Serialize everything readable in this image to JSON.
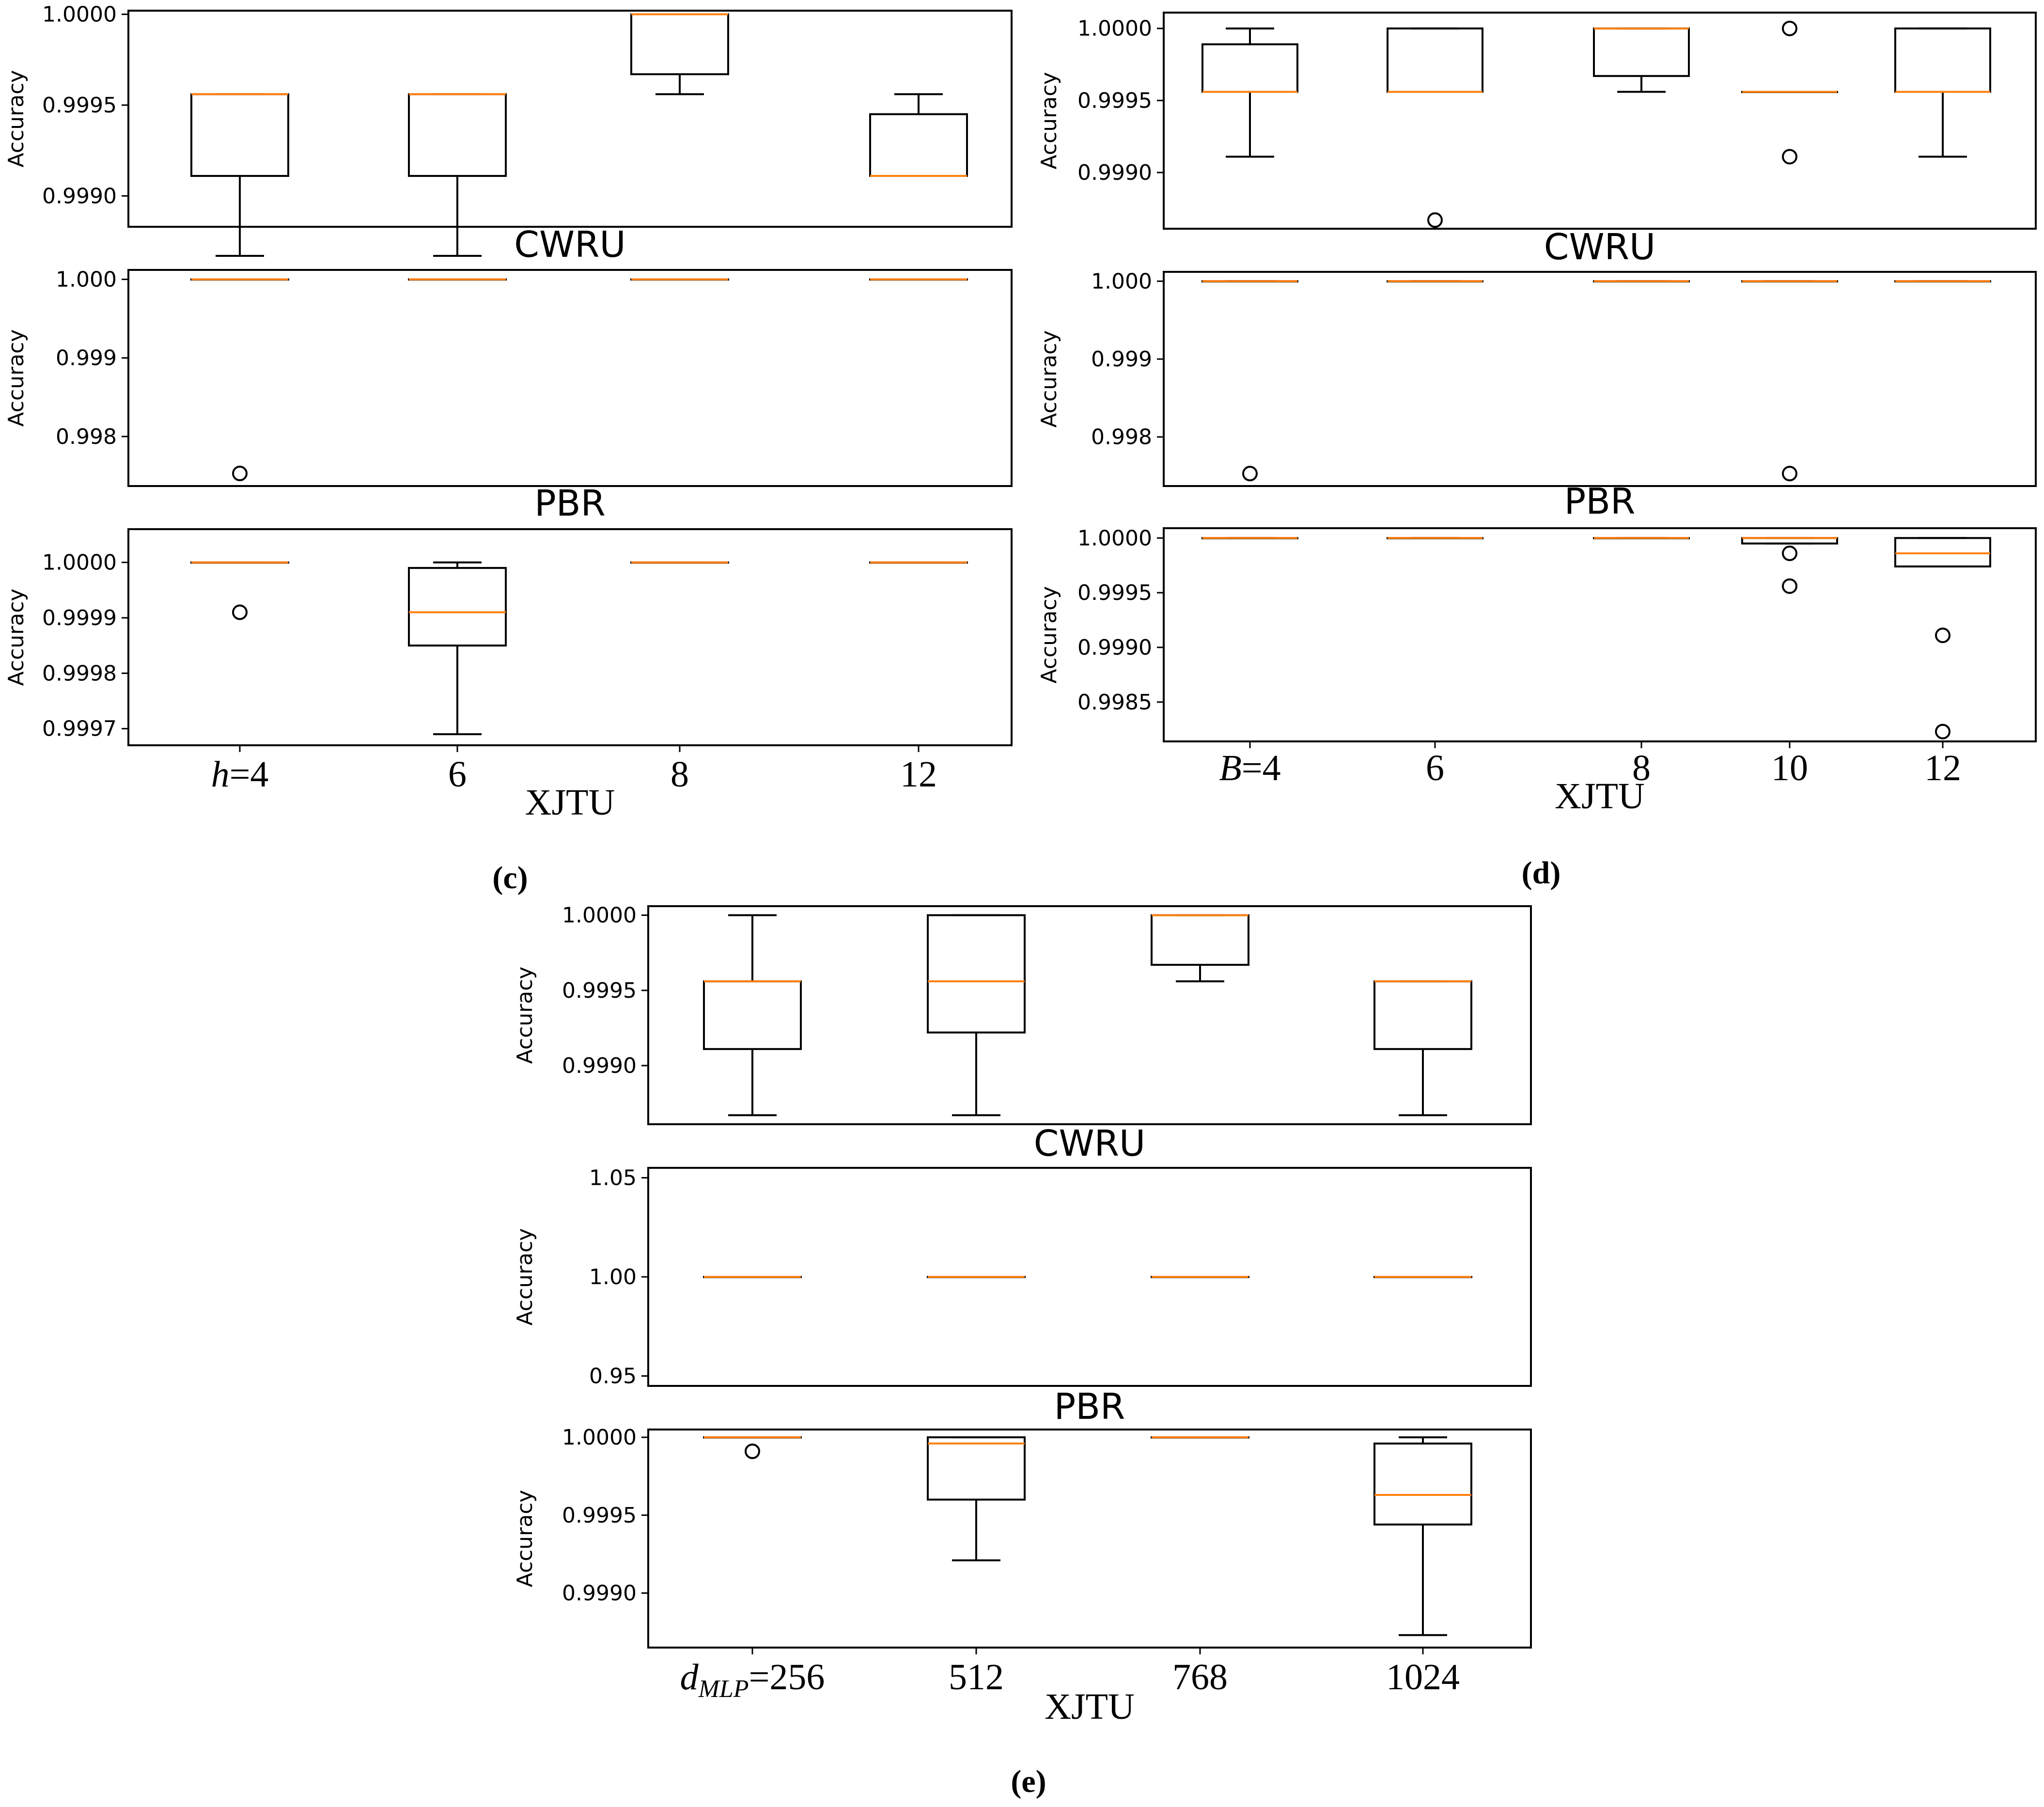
{
  "figure": {
    "panel_labels": [
      "(c)",
      "(d)",
      "(e)"
    ]
  },
  "chart_data": [
    {
      "panel": "(c)",
      "type": "box",
      "parameter": "h",
      "categories": [
        "h=4",
        "6",
        "8",
        "12"
      ],
      "category_parts": [
        [
          "h",
          "=4"
        ],
        [
          "6"
        ],
        [
          "8"
        ],
        [
          "12"
        ]
      ],
      "subplots": [
        {
          "dataset": "CWRU",
          "ylabel": "Accuracy",
          "ylim": [
            0.99883,
            1.00002
          ],
          "yticks": [
            0.999,
            0.9995,
            1.0
          ],
          "ytick_labels": [
            "0.9990",
            "0.9995",
            "1.0000"
          ],
          "boxes": [
            {
              "whislo": 0.99867,
              "q1": 0.99911,
              "med": 0.99956,
              "q3": 0.99956,
              "whishi": 0.99956,
              "fliers": []
            },
            {
              "whislo": 0.99867,
              "q1": 0.99911,
              "med": 0.99956,
              "q3": 0.99956,
              "whishi": 0.99956,
              "fliers": []
            },
            {
              "whislo": 0.99956,
              "q1": 0.99967,
              "med": 1.0,
              "q3": 1.0,
              "whishi": 1.0,
              "fliers": []
            },
            {
              "whislo": 0.99911,
              "q1": 0.99911,
              "med": 0.99911,
              "q3": 0.99945,
              "whishi": 0.99956,
              "fliers": []
            }
          ]
        },
        {
          "dataset": "PBR",
          "ylabel": "Accuracy",
          "ylim": [
            0.99737,
            1.00012
          ],
          "yticks": [
            0.998,
            0.999,
            1.0
          ],
          "ytick_labels": [
            "0.998",
            "0.999",
            "1.000"
          ],
          "boxes": [
            {
              "whislo": 1.0,
              "q1": 1.0,
              "med": 1.0,
              "q3": 1.0,
              "whishi": 1.0,
              "fliers": [
                0.99753
              ]
            },
            {
              "whislo": 1.0,
              "q1": 1.0,
              "med": 1.0,
              "q3": 1.0,
              "whishi": 1.0,
              "fliers": []
            },
            {
              "whislo": 1.0,
              "q1": 1.0,
              "med": 1.0,
              "q3": 1.0,
              "whishi": 1.0,
              "fliers": []
            },
            {
              "whislo": 1.0,
              "q1": 1.0,
              "med": 1.0,
              "q3": 1.0,
              "whishi": 1.0,
              "fliers": []
            }
          ]
        },
        {
          "dataset": "XJTU",
          "ylabel": "Accuracy",
          "ylim": [
            0.99967,
            1.00006
          ],
          "yticks": [
            0.9997,
            0.9998,
            0.9999,
            1.0
          ],
          "ytick_labels": [
            "0.9997",
            "0.9998",
            "0.9999",
            "1.0000"
          ],
          "boxes": [
            {
              "whislo": 1.0,
              "q1": 1.0,
              "med": 1.0,
              "q3": 1.0,
              "whishi": 1.0,
              "fliers": [
                0.99991
              ]
            },
            {
              "whislo": 0.99969,
              "q1": 0.99985,
              "med": 0.99991,
              "q3": 0.99999,
              "whishi": 1.0,
              "fliers": []
            },
            {
              "whislo": 1.0,
              "q1": 1.0,
              "med": 1.0,
              "q3": 1.0,
              "whishi": 1.0,
              "fliers": []
            },
            {
              "whislo": 1.0,
              "q1": 1.0,
              "med": 1.0,
              "q3": 1.0,
              "whishi": 1.0,
              "fliers": []
            }
          ]
        }
      ]
    },
    {
      "panel": "(d)",
      "type": "box",
      "parameter": "B",
      "categories": [
        "B=4",
        "6",
        "8",
        "10",
        "12"
      ],
      "category_parts": [
        [
          "B",
          "=4"
        ],
        [
          "6"
        ],
        [
          "8"
        ],
        [
          "10"
        ],
        [
          "12"
        ]
      ],
      "subplots": [
        {
          "dataset": "CWRU",
          "ylabel": "Accuracy",
          "ylim": [
            0.99861,
            1.00011
          ],
          "yticks": [
            0.999,
            0.9995,
            1.0
          ],
          "ytick_labels": [
            "0.9990",
            "0.9995",
            "1.0000"
          ],
          "boxes": [
            {
              "whislo": 0.99911,
              "q1": 0.99956,
              "med": 0.99956,
              "q3": 0.99989,
              "whishi": 1.0,
              "fliers": []
            },
            {
              "whislo": 0.99956,
              "q1": 0.99956,
              "med": 0.99956,
              "q3": 1.0,
              "whishi": 1.0,
              "fliers": [
                0.99867
              ]
            },
            {
              "whislo": 0.99956,
              "q1": 0.99967,
              "med": 1.0,
              "q3": 1.0,
              "whishi": 1.0,
              "fliers": []
            },
            {
              "whislo": 0.99956,
              "q1": 0.99956,
              "med": 0.99956,
              "q3": 0.99956,
              "whishi": 0.99956,
              "fliers": [
                1.0,
                0.99911
              ]
            },
            {
              "whislo": 0.99911,
              "q1": 0.99956,
              "med": 0.99956,
              "q3": 1.0,
              "whishi": 1.0,
              "fliers": []
            }
          ]
        },
        {
          "dataset": "PBR",
          "ylabel": "Accuracy",
          "ylim": [
            0.99737,
            1.00012
          ],
          "yticks": [
            0.998,
            0.999,
            1.0
          ],
          "ytick_labels": [
            "0.998",
            "0.999",
            "1.000"
          ],
          "boxes": [
            {
              "whislo": 1.0,
              "q1": 1.0,
              "med": 1.0,
              "q3": 1.0,
              "whishi": 1.0,
              "fliers": [
                0.99753
              ]
            },
            {
              "whislo": 1.0,
              "q1": 1.0,
              "med": 1.0,
              "q3": 1.0,
              "whishi": 1.0,
              "fliers": []
            },
            {
              "whislo": 1.0,
              "q1": 1.0,
              "med": 1.0,
              "q3": 1.0,
              "whishi": 1.0,
              "fliers": []
            },
            {
              "whislo": 1.0,
              "q1": 1.0,
              "med": 1.0,
              "q3": 1.0,
              "whishi": 1.0,
              "fliers": [
                0.99753
              ]
            },
            {
              "whislo": 1.0,
              "q1": 1.0,
              "med": 1.0,
              "q3": 1.0,
              "whishi": 1.0,
              "fliers": []
            }
          ]
        },
        {
          "dataset": "XJTU",
          "ylabel": "Accuracy",
          "ylim": [
            0.99814,
            1.00009
          ],
          "yticks": [
            0.9985,
            0.999,
            0.9995,
            1.0
          ],
          "ytick_labels": [
            "0.9985",
            "0.9990",
            "0.9995",
            "1.0000"
          ],
          "boxes": [
            {
              "whislo": 1.0,
              "q1": 1.0,
              "med": 1.0,
              "q3": 1.0,
              "whishi": 1.0,
              "fliers": []
            },
            {
              "whislo": 1.0,
              "q1": 1.0,
              "med": 1.0,
              "q3": 1.0,
              "whishi": 1.0,
              "fliers": []
            },
            {
              "whislo": 1.0,
              "q1": 1.0,
              "med": 1.0,
              "q3": 1.0,
              "whishi": 1.0,
              "fliers": []
            },
            {
              "whislo": 0.99995,
              "q1": 0.99995,
              "med": 1.0,
              "q3": 1.0,
              "whishi": 1.0,
              "fliers": [
                0.99986,
                0.99956
              ]
            },
            {
              "whislo": 0.99974,
              "q1": 0.99974,
              "med": 0.99986,
              "q3": 1.0,
              "whishi": 1.0,
              "fliers": [
                0.99911,
                0.99823
              ]
            }
          ]
        }
      ]
    },
    {
      "panel": "(e)",
      "type": "box",
      "parameter": "dMLP",
      "categories": [
        "dMLP=256",
        "512",
        "768",
        "1024"
      ],
      "category_parts": [
        [
          "d",
          "MLP",
          "=256"
        ],
        [
          "512"
        ],
        [
          "768"
        ],
        [
          "1024"
        ]
      ],
      "subplots": [
        {
          "dataset": "CWRU",
          "ylabel": "Accuracy",
          "ylim": [
            0.99861,
            1.00006
          ],
          "yticks": [
            0.999,
            0.9995,
            1.0
          ],
          "ytick_labels": [
            "0.9990",
            "0.9995",
            "1.0000"
          ],
          "boxes": [
            {
              "whislo": 0.99867,
              "q1": 0.99911,
              "med": 0.99956,
              "q3": 0.99956,
              "whishi": 1.0,
              "fliers": []
            },
            {
              "whislo": 0.99867,
              "q1": 0.99922,
              "med": 0.99956,
              "q3": 1.0,
              "whishi": 1.0,
              "fliers": []
            },
            {
              "whislo": 0.99956,
              "q1": 0.99967,
              "med": 1.0,
              "q3": 1.0,
              "whishi": 1.0,
              "fliers": []
            },
            {
              "whislo": 0.99867,
              "q1": 0.99911,
              "med": 0.99956,
              "q3": 0.99956,
              "whishi": 0.99956,
              "fliers": []
            }
          ]
        },
        {
          "dataset": "PBR",
          "ylabel": "Accuracy",
          "ylim": [
            0.945,
            1.055
          ],
          "yticks": [
            0.95,
            1.0,
            1.05
          ],
          "ytick_labels": [
            "0.95",
            "1.00",
            "1.05"
          ],
          "boxes": [
            {
              "whislo": 1.0,
              "q1": 1.0,
              "med": 1.0,
              "q3": 1.0,
              "whishi": 1.0,
              "fliers": []
            },
            {
              "whislo": 1.0,
              "q1": 1.0,
              "med": 1.0,
              "q3": 1.0,
              "whishi": 1.0,
              "fliers": []
            },
            {
              "whislo": 1.0,
              "q1": 1.0,
              "med": 1.0,
              "q3": 1.0,
              "whishi": 1.0,
              "fliers": []
            },
            {
              "whislo": 1.0,
              "q1": 1.0,
              "med": 1.0,
              "q3": 1.0,
              "whishi": 1.0,
              "fliers": []
            }
          ]
        },
        {
          "dataset": "XJTU",
          "ylabel": "Accuracy",
          "ylim": [
            0.99865,
            1.00005
          ],
          "yticks": [
            0.999,
            0.9995,
            1.0
          ],
          "ytick_labels": [
            "0.9990",
            "0.9995",
            "1.0000"
          ],
          "boxes": [
            {
              "whislo": 1.0,
              "q1": 1.0,
              "med": 1.0,
              "q3": 1.0,
              "whishi": 1.0,
              "fliers": [
                0.99991
              ]
            },
            {
              "whislo": 0.99921,
              "q1": 0.9996,
              "med": 0.99996,
              "q3": 1.0,
              "whishi": 1.0,
              "fliers": []
            },
            {
              "whislo": 1.0,
              "q1": 1.0,
              "med": 1.0,
              "q3": 1.0,
              "whishi": 1.0,
              "fliers": []
            },
            {
              "whislo": 0.99873,
              "q1": 0.99944,
              "med": 0.99963,
              "q3": 0.99996,
              "whishi": 1.0,
              "fliers": []
            }
          ]
        }
      ]
    }
  ],
  "colors": {
    "median": "#ff7f0e",
    "box": "#000000",
    "background": "#ffffff"
  }
}
